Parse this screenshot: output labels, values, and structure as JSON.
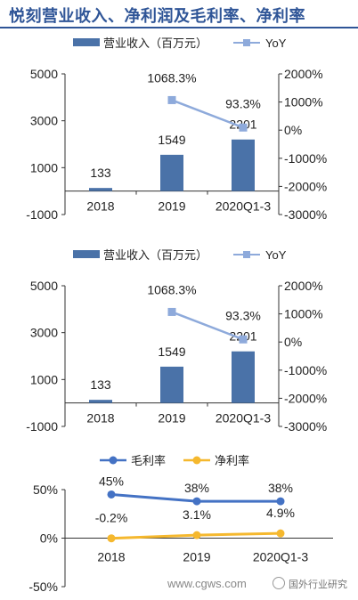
{
  "page": {
    "title": "悦刻营业收入、净利润及毛利率、净利率",
    "watermark_url": "www.cgws.com",
    "watermark_brand": "国外行业研究"
  },
  "chart_data": [
    {
      "type": "bar",
      "categories": [
        "2018",
        "2019",
        "2020Q1-3"
      ],
      "series": [
        {
          "name": "营业收入（百万元）",
          "values": [
            133,
            1549,
            2201
          ],
          "labels": [
            "133",
            "1549",
            "2201"
          ],
          "color": "#4a72a8",
          "axis": "left"
        },
        {
          "name": "YoY",
          "values": [
            null,
            1068.3,
            93.3
          ],
          "labels": [
            "",
            "1068.3%",
            "93.3%"
          ],
          "color": "#8eaadb",
          "axis": "right",
          "kind": "line"
        }
      ],
      "y_ticks": [
        "5000",
        "3000",
        "1000",
        "-1000"
      ],
      "ylim": [
        -1000,
        5000
      ],
      "y2_ticks": [
        "2000%",
        "1000%",
        "0%",
        "-1000%",
        "-2000%",
        "-3000%"
      ],
      "y2lim": [
        -3000,
        2000
      ],
      "legend": "top"
    },
    {
      "type": "bar",
      "categories": [
        "2018",
        "2019",
        "2020Q1-3"
      ],
      "series": [
        {
          "name": "营业收入（百万元）",
          "values": [
            133,
            1549,
            2201
          ],
          "labels": [
            "133",
            "1549",
            "2201"
          ],
          "color": "#4a72a8",
          "axis": "left"
        },
        {
          "name": "YoY",
          "values": [
            null,
            1068.3,
            93.3
          ],
          "labels": [
            "",
            "1068.3%",
            "93.3%"
          ],
          "color": "#8eaadb",
          "axis": "right",
          "kind": "line"
        }
      ],
      "y_ticks": [
        "5000",
        "3000",
        "1000",
        "-1000"
      ],
      "ylim": [
        -1000,
        5000
      ],
      "y2_ticks": [
        "2000%",
        "1000%",
        "0%",
        "-1000%",
        "-2000%",
        "-3000%"
      ],
      "y2lim": [
        -3000,
        2000
      ],
      "legend": "top"
    },
    {
      "type": "line",
      "categories": [
        "2018",
        "2019",
        "2020Q1-3"
      ],
      "series": [
        {
          "name": "毛利率",
          "values": [
            45,
            38,
            38
          ],
          "labels": [
            "45%",
            "38%",
            "38%"
          ],
          "color": "#4472c4"
        },
        {
          "name": "净利率",
          "values": [
            -0.2,
            3.1,
            4.9
          ],
          "labels": [
            "-0.2%",
            "3.1%",
            "4.9%"
          ],
          "color": "#f5b82e"
        }
      ],
      "y_ticks": [
        "50%",
        "0%",
        "-50%"
      ],
      "ylim": [
        -50,
        50
      ],
      "legend": "top"
    }
  ]
}
